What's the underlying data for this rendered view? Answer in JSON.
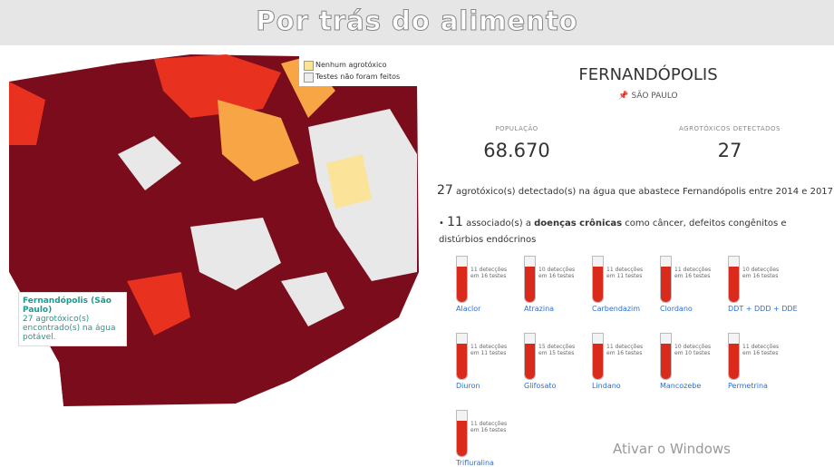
{
  "header": {
    "title": "Por trás do alimento"
  },
  "legend": {
    "items": [
      "Nenhum agrotóxico",
      "Testes não foram feitos"
    ]
  },
  "tooltip": {
    "name": "Fernandópolis (São Paulo)",
    "text": "27 agrotóxico(s) encontrado(s) na água potável."
  },
  "city": {
    "name": "FERNANDÓPOLIS",
    "state": "SÃO PAULO",
    "stats": [
      {
        "label": "POPULAÇÃO",
        "value": "68.670"
      },
      {
        "label": "AGROTÓXICOS DETECTADOS",
        "value": "27"
      }
    ],
    "summary": {
      "count": "27",
      "text": "agrotóxico(s) detectado(s) na água que abastece Fernandópolis entre 2014 e 2017."
    },
    "bullet": {
      "count": "11",
      "before": "associado(s) a",
      "bold": "doenças crônicas",
      "after": "como câncer, defeitos congênitos e distúrbios endócrinos"
    },
    "tubes": [
      {
        "label": "11 detecções em 16 testes",
        "name": "Alaclor"
      },
      {
        "label": "10 detecções em 16 testes",
        "name": "Atrazina"
      },
      {
        "label": "11 detecções em 11 testes",
        "name": "Carbendazim"
      },
      {
        "label": "11 detecções em 16 testes",
        "name": "Clordano"
      },
      {
        "label": "10 detecções em 16 testes",
        "name": "DDT + DDD + DDE"
      },
      {
        "label": "11 detecções em 11 testes",
        "name": "Diuron"
      },
      {
        "label": "15 detecções em 15 testes",
        "name": "Glifosato"
      },
      {
        "label": "11 detecções em 16 testes",
        "name": "Lindano"
      },
      {
        "label": "10 detecções em 10 testes",
        "name": "Mancozebe"
      },
      {
        "label": "11 detecções em 16 testes",
        "name": "Permetrina"
      },
      {
        "label": "11 detecções em 16 testes",
        "name": "Trifluralina"
      }
    ]
  },
  "watermark": "Ativar o Windows"
}
